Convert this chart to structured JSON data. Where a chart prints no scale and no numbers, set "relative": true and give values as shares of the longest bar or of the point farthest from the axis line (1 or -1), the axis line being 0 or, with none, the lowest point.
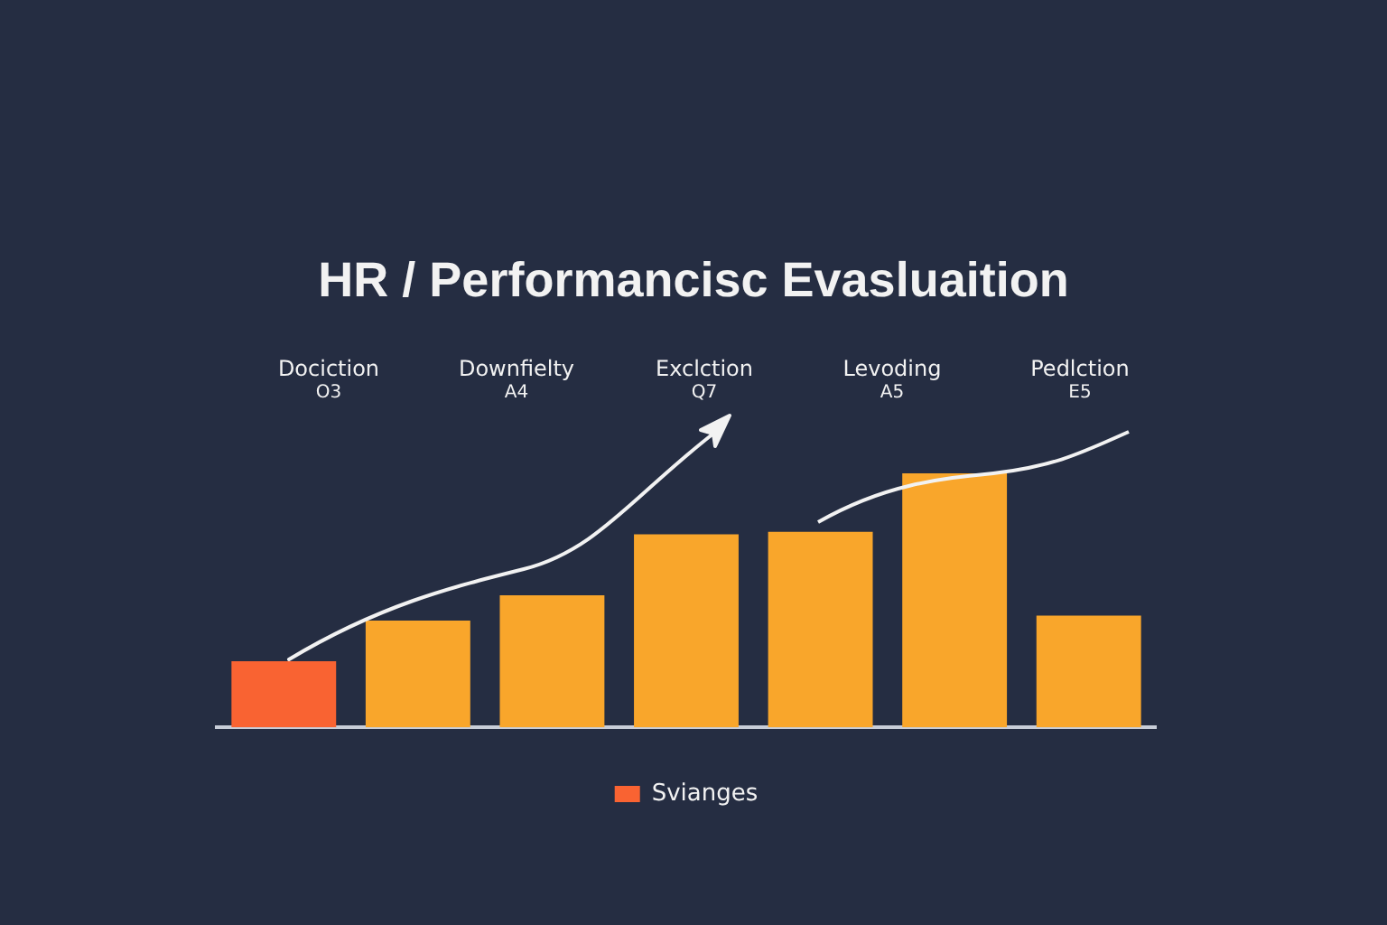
{
  "chart_data": {
    "type": "bar",
    "title": "HR / Performancisc Evasluaition",
    "annotations": [
      "Dociction",
      "O3",
      "Downfielty",
      "A4",
      "Exclction",
      "Q7",
      "Levoding",
      "A5",
      "Pedlction",
      "E5"
    ],
    "categories": [
      null,
      null,
      null,
      null,
      null,
      null,
      null
    ],
    "series": [
      {
        "name": "Svianges",
        "color": "#f96332",
        "colors": [
          "#f96332",
          "#f9a62b",
          "#f9a62b",
          "#f9a62b",
          "#f9a62b",
          "#f9a62b",
          "#f9a62b"
        ],
        "values": [
          0.26,
          0.42,
          0.52,
          0.76,
          0.77,
          1,
          0.44
        ]
      }
    ],
    "relative": true,
    "legend": "bottom",
    "grid": false
  }
}
